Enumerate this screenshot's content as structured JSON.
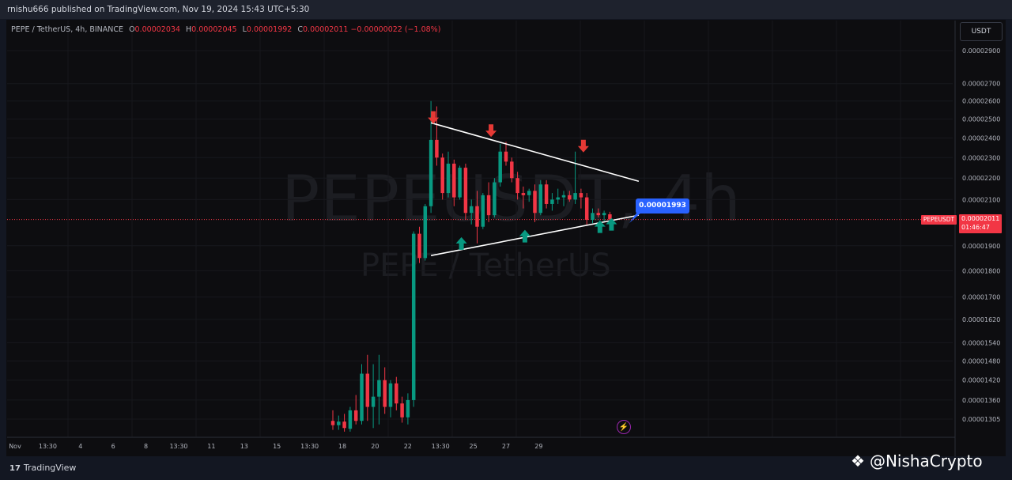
{
  "header": {
    "published_text": "rnishu666 published on TradingView.com, Nov 19, 2024 15:43 UTC+5:30"
  },
  "legend": {
    "symbol": "PEPE / TetherUS, 4h, BINANCE",
    "o_label": "O",
    "o_value": "0.00002034",
    "h_label": "H",
    "h_value": "0.00002045",
    "l_label": "L",
    "l_value": "0.00001992",
    "c_label": "C",
    "c_value": "0.00002011",
    "change": "−0.00000022 (−1.08%)"
  },
  "currency_button": "USDT",
  "watermark": {
    "ticker": "PEPEUSDT, 4h",
    "name": "PEPE / TetherUS"
  },
  "price_axis": {
    "ticks": [
      "0.00002900",
      "0.00002700",
      "0.00002600",
      "0.00002500",
      "0.00002400",
      "0.00002300",
      "0.00002200",
      "0.00002100",
      "0.00001900",
      "0.00001800",
      "0.00001700",
      "0.00001620",
      "0.00001540",
      "0.00001480",
      "0.00001420",
      "0.00001360",
      "0.00001305"
    ],
    "last_price": "0.00002011",
    "countdown": "01:46:47",
    "symbol_badge": "PEPEUSDT"
  },
  "time_axis": {
    "labels": [
      "Nov",
      "13:30",
      "4",
      "6",
      "8",
      "13:30",
      "11",
      "13",
      "15",
      "13:30",
      "18",
      "20",
      "22",
      "13:30",
      "25",
      "27",
      "29"
    ]
  },
  "annotation": {
    "price_label": "0.00001993"
  },
  "colors": {
    "up": "#089981",
    "down": "#f23645",
    "background": "#0d0d10",
    "trendline": "#ffffff",
    "label_blue": "#2962ff"
  },
  "chart_data": {
    "type": "candlestick",
    "symbol": "PEPE / TetherUS",
    "interval": "4h",
    "exchange": "BINANCE",
    "y_scale": "log",
    "ylim": [
      1.28e-05,
      3.05e-05
    ],
    "candles": [
      {
        "o": 1.3e-05,
        "h": 1.33e-05,
        "l": 1.275e-05,
        "c": 1.288e-05
      },
      {
        "o": 1.288e-05,
        "h": 1.315e-05,
        "l": 1.275e-05,
        "c": 1.298e-05
      },
      {
        "o": 1.298e-05,
        "h": 1.32e-05,
        "l": 1.27e-05,
        "c": 1.28e-05
      },
      {
        "o": 1.278e-05,
        "h": 1.34e-05,
        "l": 1.27e-05,
        "c": 1.33e-05
      },
      {
        "o": 1.33e-05,
        "h": 1.375e-05,
        "l": 1.29e-05,
        "c": 1.3e-05
      },
      {
        "o": 1.3e-05,
        "h": 1.47e-05,
        "l": 1.29e-05,
        "c": 1.44e-05
      },
      {
        "o": 1.44e-05,
        "h": 1.5e-05,
        "l": 1.3e-05,
        "c": 1.34e-05
      },
      {
        "o": 1.34e-05,
        "h": 1.47e-05,
        "l": 1.28e-05,
        "c": 1.37e-05
      },
      {
        "o": 1.37e-05,
        "h": 1.5e-05,
        "l": 1.29e-05,
        "c": 1.42e-05
      },
      {
        "o": 1.42e-05,
        "h": 1.46e-05,
        "l": 1.32e-05,
        "c": 1.34e-05
      },
      {
        "o": 1.34e-05,
        "h": 1.42e-05,
        "l": 1.31e-05,
        "c": 1.41e-05
      },
      {
        "o": 1.41e-05,
        "h": 1.43e-05,
        "l": 1.33e-05,
        "c": 1.35e-05
      },
      {
        "o": 1.35e-05,
        "h": 1.37e-05,
        "l": 1.295e-05,
        "c": 1.31e-05
      },
      {
        "o": 1.31e-05,
        "h": 1.38e-05,
        "l": 1.29e-05,
        "c": 1.36e-05
      },
      {
        "o": 1.36e-05,
        "h": 1.96e-05,
        "l": 1.34e-05,
        "c": 1.95e-05
      },
      {
        "o": 1.95e-05,
        "h": 1.98e-05,
        "l": 1.83e-05,
        "c": 1.85e-05
      },
      {
        "o": 1.85e-05,
        "h": 2.08e-05,
        "l": 1.84e-05,
        "c": 2.07e-05
      },
      {
        "o": 2.07e-05,
        "h": 2.6e-05,
        "l": 2.04e-05,
        "c": 2.39e-05
      },
      {
        "o": 2.39e-05,
        "h": 2.57e-05,
        "l": 2.26e-05,
        "c": 2.3e-05
      },
      {
        "o": 2.3e-05,
        "h": 2.32e-05,
        "l": 2.1e-05,
        "c": 2.13e-05
      },
      {
        "o": 2.13e-05,
        "h": 2.33e-05,
        "l": 2.11e-05,
        "c": 2.27e-05
      },
      {
        "o": 2.27e-05,
        "h": 2.29e-05,
        "l": 2.07e-05,
        "c": 2.11e-05
      },
      {
        "o": 2.11e-05,
        "h": 2.26e-05,
        "l": 2.1e-05,
        "c": 2.25e-05
      },
      {
        "o": 2.25e-05,
        "h": 2.27e-05,
        "l": 2.01e-05,
        "c": 2.04e-05
      },
      {
        "o": 2.04e-05,
        "h": 2.1e-05,
        "l": 1.99e-05,
        "c": 2.07e-05
      },
      {
        "o": 2.07e-05,
        "h": 2.14e-05,
        "l": 1.91e-05,
        "c": 1.98e-05
      },
      {
        "o": 1.98e-05,
        "h": 2.13e-05,
        "l": 1.97e-05,
        "c": 2.12e-05
      },
      {
        "o": 2.12e-05,
        "h": 2.18e-05,
        "l": 2e-05,
        "c": 2.03e-05
      },
      {
        "o": 2.03e-05,
        "h": 2.2e-05,
        "l": 2.02e-05,
        "c": 2.18e-05
      },
      {
        "o": 2.18e-05,
        "h": 2.37e-05,
        "l": 2.16e-05,
        "c": 2.33e-05
      },
      {
        "o": 2.33e-05,
        "h": 2.38e-05,
        "l": 2.26e-05,
        "c": 2.28e-05
      },
      {
        "o": 2.28e-05,
        "h": 2.3e-05,
        "l": 2.18e-05,
        "c": 2.2e-05
      },
      {
        "o": 2.2e-05,
        "h": 2.23e-05,
        "l": 2.1e-05,
        "c": 2.13e-05
      },
      {
        "o": 2.13e-05,
        "h": 2.16e-05,
        "l": 2.06e-05,
        "c": 2.12e-05
      },
      {
        "o": 2.12e-05,
        "h": 2.15e-05,
        "l": 2.09e-05,
        "c": 2.14e-05
      },
      {
        "o": 2.14e-05,
        "h": 2.17e-05,
        "l": 2e-05,
        "c": 2.04e-05
      },
      {
        "o": 2.04e-05,
        "h": 2.19e-05,
        "l": 2.03e-05,
        "c": 2.17e-05
      },
      {
        "o": 2.17e-05,
        "h": 2.19e-05,
        "l": 2.06e-05,
        "c": 2.08e-05
      },
      {
        "o": 2.08e-05,
        "h": 2.13e-05,
        "l": 2.05e-05,
        "c": 2.1e-05
      },
      {
        "o": 2.1e-05,
        "h": 2.15e-05,
        "l": 2.08e-05,
        "c": 2.11e-05
      },
      {
        "o": 2.11e-05,
        "h": 2.14e-05,
        "l": 2.07e-05,
        "c": 2.12e-05
      },
      {
        "o": 2.12e-05,
        "h": 2.14e-05,
        "l": 2.09e-05,
        "c": 2.1e-05
      },
      {
        "o": 2.1e-05,
        "h": 2.33e-05,
        "l": 2.08e-05,
        "c": 2.13e-05
      },
      {
        "o": 2.13e-05,
        "h": 2.15e-05,
        "l": 2.06e-05,
        "c": 2.11e-05
      },
      {
        "o": 2.11e-05,
        "h": 2.13e-05,
        "l": 1.985e-05,
        "c": 2.01e-05
      },
      {
        "o": 2.01e-05,
        "h": 2.06e-05,
        "l": 1.995e-05,
        "c": 2.04e-05
      },
      {
        "o": 2.04e-05,
        "h": 2.06e-05,
        "l": 2.02e-05,
        "c": 2.03e-05
      },
      {
        "o": 2.03e-05,
        "h": 2.05e-05,
        "l": 2e-05,
        "c": 2.04e-05
      },
      {
        "o": 2.034e-05,
        "h": 2.045e-05,
        "l": 1.992e-05,
        "c": 2.011e-05
      }
    ],
    "trendlines": [
      {
        "name": "upper",
        "from": {
          "index": 17,
          "price": 2.48e-05
        },
        "to": {
          "index": 53,
          "price": 2.185e-05
        }
      },
      {
        "name": "lower",
        "from": {
          "index": 17,
          "price": 1.86e-05
        },
        "to": {
          "index": 53,
          "price": 2.03e-05
        }
      }
    ],
    "markers": {
      "down_arrows": [
        {
          "index": 17,
          "price": 2.5e-05
        },
        {
          "index": 27,
          "price": 2.43e-05
        },
        {
          "index": 43,
          "price": 2.35e-05
        }
      ],
      "up_arrows": [
        {
          "index": 22,
          "price": 1.89e-05
        },
        {
          "index": 33,
          "price": 1.92e-05
        },
        {
          "index": 46,
          "price": 1.96e-05
        },
        {
          "index": 48,
          "price": 1.97e-05
        }
      ]
    },
    "last_price": 2.011e-05
  }
}
